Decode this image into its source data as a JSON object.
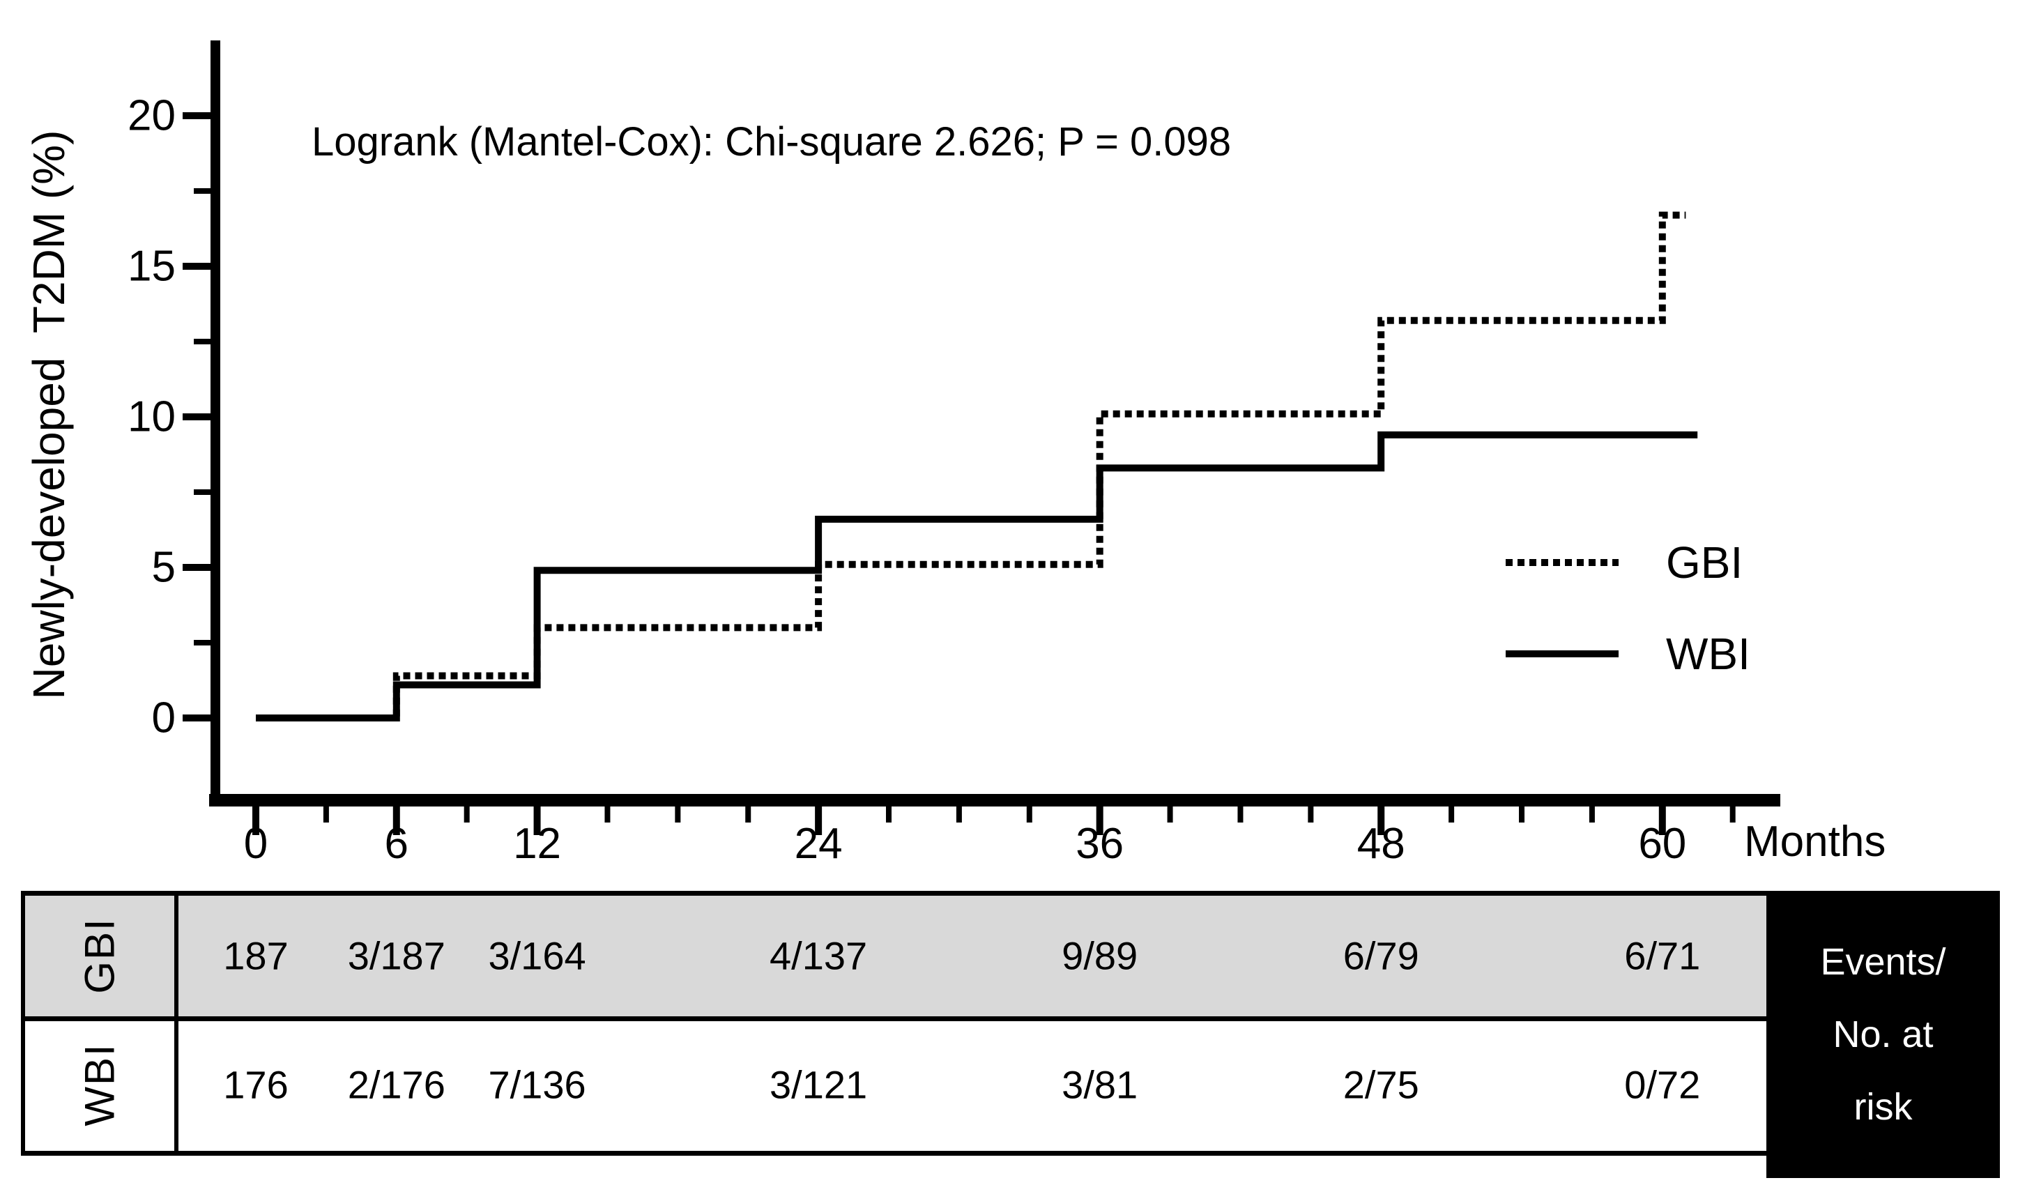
{
  "chart_data": {
    "type": "line",
    "subtype": "step_function_cumulative_incidence",
    "title": "",
    "annotation": "Logrank (Mantel-Cox): Chi-square 2.626; P = 0.098",
    "xlabel": "Months",
    "ylabel": "Newly-developed  T2DM (%)",
    "xlim": [
      0,
      65
    ],
    "ylim": [
      0,
      22
    ],
    "x_ticks": [
      0,
      6,
      12,
      24,
      36,
      48,
      60
    ],
    "x_minor_ticks": [
      3,
      9,
      15,
      18,
      21,
      27,
      30,
      33,
      39,
      42,
      45,
      51,
      54,
      57,
      63
    ],
    "y_ticks": [
      0,
      5,
      10,
      15,
      20
    ],
    "y_minor_ticks": [
      2.5,
      7.5,
      12.5,
      17.5
    ],
    "grid": false,
    "legend_position": "right-middle",
    "series": [
      {
        "name": "GBI",
        "line_style": "dotted",
        "color": "#000000",
        "step": "post",
        "x": [
          0,
          6,
          12,
          24,
          36,
          48,
          60,
          61
        ],
        "y": [
          0,
          1.4,
          3.0,
          5.1,
          10.1,
          13.2,
          16.7,
          16.7
        ]
      },
      {
        "name": "WBI",
        "line_style": "solid",
        "color": "#000000",
        "step": "post",
        "x": [
          0,
          6,
          12,
          24,
          36,
          48,
          61.5
        ],
        "y": [
          0,
          1.1,
          4.9,
          6.6,
          8.3,
          9.4,
          9.4
        ]
      }
    ]
  },
  "risk_table": {
    "months": [
      0,
      6,
      12,
      24,
      36,
      48,
      60
    ],
    "events_header_lines": [
      "Events/",
      "No. at",
      "risk"
    ],
    "rows": [
      {
        "label": "GBI",
        "background": "#d9d9d9",
        "values": [
          "187",
          "3/187",
          "3/164",
          "4/137",
          "9/89",
          "6/79",
          "6/71"
        ]
      },
      {
        "label": "WBI",
        "background": "#ffffff",
        "values": [
          "176",
          "2/176",
          "7/136",
          "3/121",
          "3/81",
          "2/75",
          "0/72"
        ]
      }
    ]
  },
  "colors": {
    "ink": "#000000",
    "table_gray": "#d9d9d9",
    "events_box_bg": "#000000",
    "events_box_text": "#ffffff",
    "background": "#ffffff"
  }
}
